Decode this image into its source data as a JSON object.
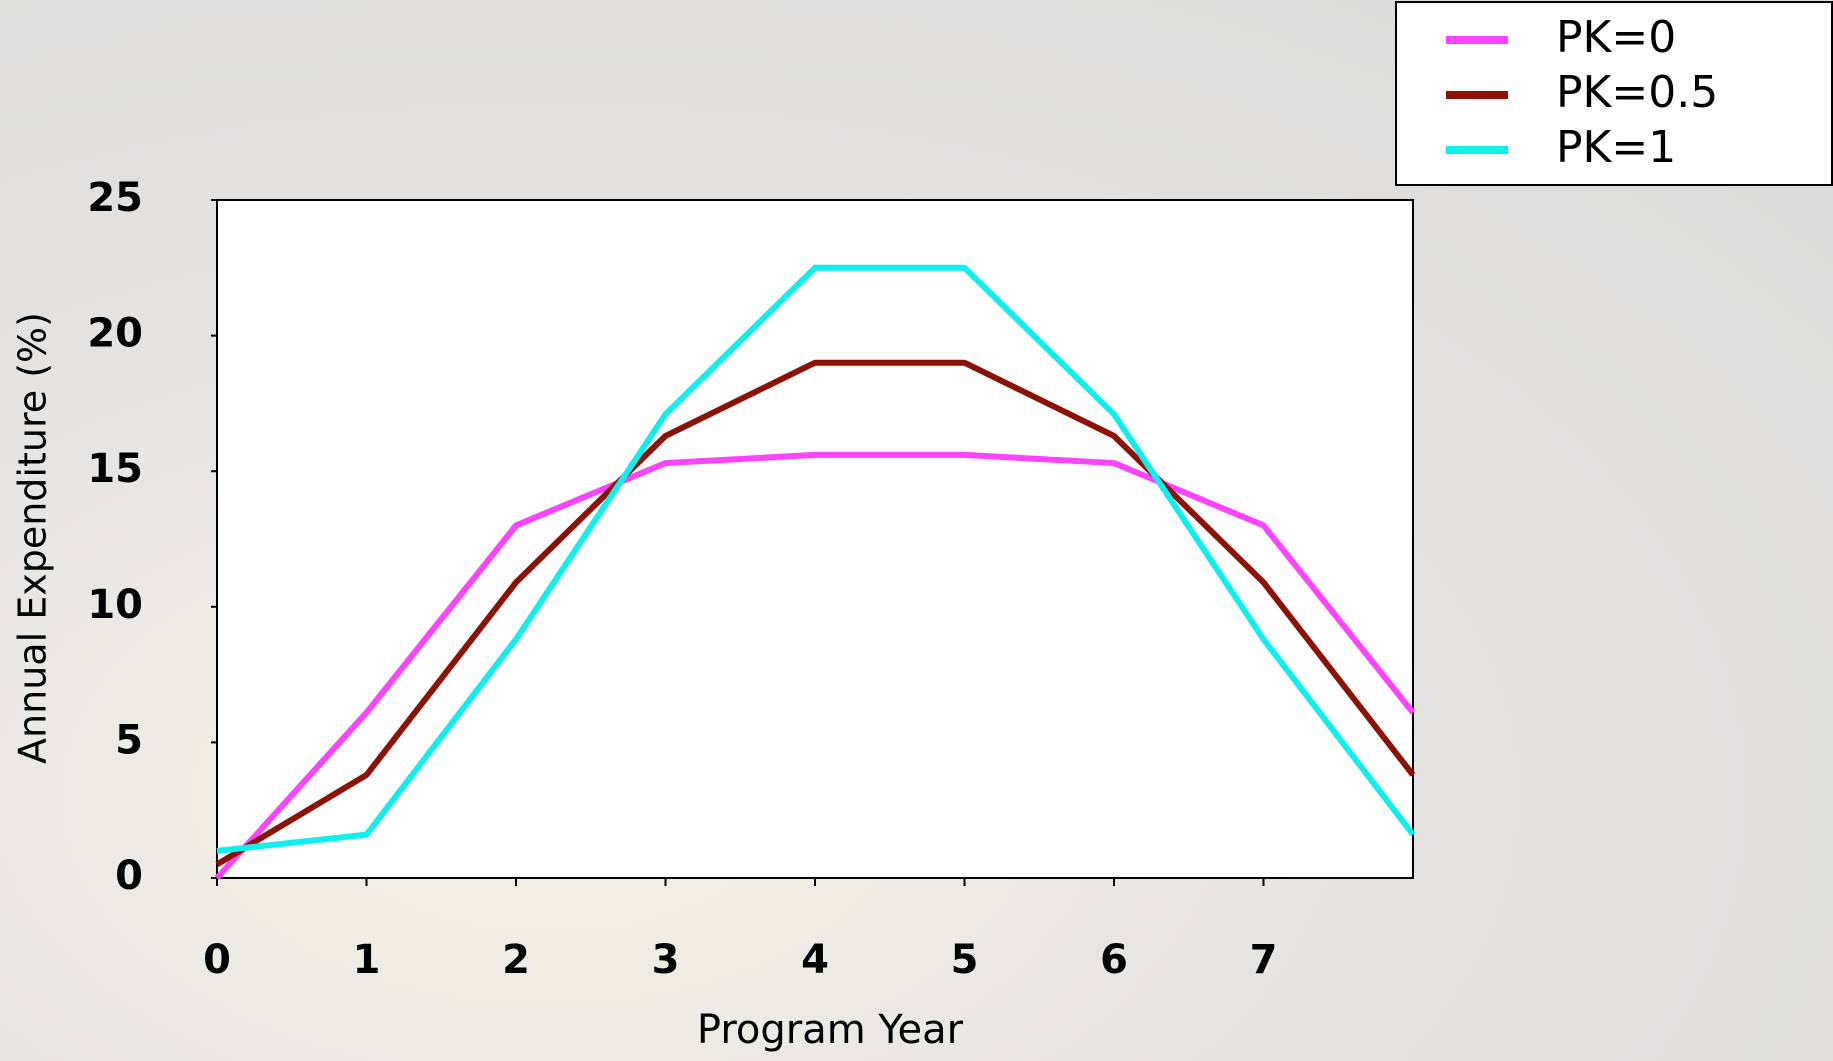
{
  "chart_data": {
    "type": "line",
    "x_label": "Program Year",
    "y_label": "Annual Expenditure (%)",
    "x": [
      0,
      1,
      2,
      3,
      4,
      5,
      6,
      7,
      8
    ],
    "series": [
      {
        "name": "PK=0",
        "color": "#ff44ff",
        "values": [
          0,
          6.1,
          13,
          15.3,
          15.6,
          15.6,
          15.3,
          13,
          6.1
        ]
      },
      {
        "name": "PK=0.5",
        "color": "#8b1206",
        "values": [
          0.5,
          3.8,
          10.9,
          16.3,
          19,
          19,
          16.3,
          10.9,
          3.8
        ]
      },
      {
        "name": "PK=1",
        "color": "#11eeee",
        "values": [
          1,
          1.6,
          8.8,
          17.1,
          22.5,
          22.5,
          17.1,
          8.8,
          1.6
        ]
      }
    ],
    "xlim": [
      0,
      8
    ],
    "xticks": [
      0,
      1,
      2,
      3,
      4,
      5,
      6,
      7
    ],
    "ylim": [
      0,
      25
    ],
    "yticks": [
      0,
      5,
      10,
      15,
      20,
      25
    ],
    "legend": "top-right"
  }
}
